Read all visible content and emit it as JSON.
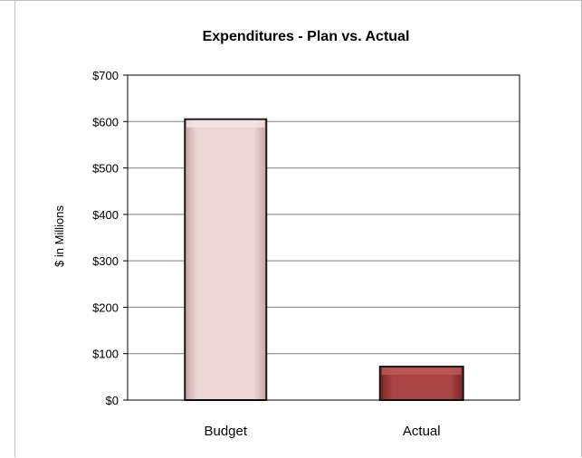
{
  "chart_data": {
    "type": "bar",
    "title": "Expenditures - Plan vs. Actual",
    "xlabel": "",
    "ylabel": "$ in Millions",
    "categories": [
      "Budget",
      "Actual"
    ],
    "values": [
      605,
      72
    ],
    "ylim": [
      0,
      700
    ],
    "yticks": [
      {
        "value": 0,
        "label": "$0"
      },
      {
        "value": 100,
        "label": "$100"
      },
      {
        "value": 200,
        "label": "$200"
      },
      {
        "value": 300,
        "label": "$300"
      },
      {
        "value": 400,
        "label": "$400"
      },
      {
        "value": 500,
        "label": "$500"
      },
      {
        "value": 600,
        "label": "$600"
      },
      {
        "value": 700,
        "label": "$700"
      }
    ],
    "grid": true,
    "legend": "none",
    "bar_colors": [
      "#e9cdcd",
      "#a03c3c"
    ],
    "bar_edge_color": "#1a1a1a"
  }
}
